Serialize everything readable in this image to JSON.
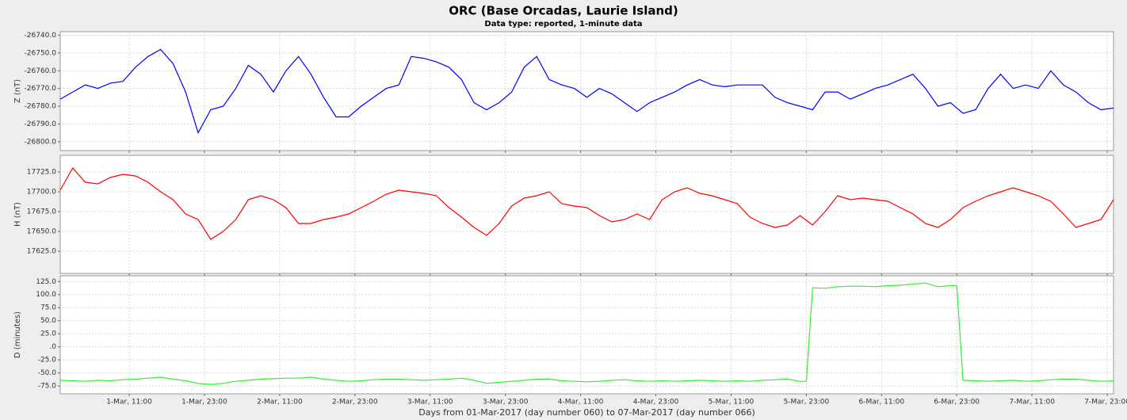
{
  "chart_data": [
    {
      "type": "line",
      "title": "ORC (Base Orcadas, Laurie Island)",
      "subtitle": "Data type: reported, 1-minute data",
      "ylabel": "Z (nT)",
      "x": [
        0,
        2,
        4,
        6,
        8,
        10,
        12,
        14,
        16,
        18,
        20,
        22,
        24,
        26,
        28,
        30,
        32,
        34,
        36,
        38,
        40,
        42,
        44,
        46,
        48,
        50,
        52,
        54,
        56,
        58,
        60,
        62,
        64,
        66,
        68,
        70,
        72,
        74,
        76,
        78,
        80,
        82,
        84,
        86,
        88,
        90,
        92,
        94,
        96,
        98,
        100,
        102,
        104,
        106,
        108,
        110,
        112,
        114,
        116,
        118,
        120,
        122,
        124,
        126,
        128,
        130,
        132,
        134,
        136,
        138,
        140,
        142,
        144,
        146,
        148,
        150,
        152,
        154,
        156,
        158,
        160,
        162,
        164,
        166,
        168
      ],
      "series": [
        {
          "color": "#0000ff",
          "values": [
            -26776,
            -26772,
            -26768,
            -26770,
            -26767,
            -26766,
            -26758,
            -26752,
            -26748,
            -26756,
            -26772,
            -26795,
            -26782,
            -26780,
            -26770,
            -26757,
            -26762,
            -26772,
            -26760,
            -26752,
            -26762,
            -26775,
            -26786,
            -26786,
            -26780,
            -26775,
            -26770,
            -26768,
            -26752,
            -26753,
            -26755,
            -26758,
            -26765,
            -26778,
            -26782,
            -26778,
            -26772,
            -26758,
            -26752,
            -26765,
            -26768,
            -26770,
            -26775,
            -26770,
            -26773,
            -26778,
            -26783,
            -26778,
            -26775,
            -26772,
            -26768,
            -26765,
            -26768,
            -26769,
            -26768,
            -26768,
            -26768,
            -26775,
            -26778,
            -26780,
            -26782,
            -26772,
            -26772,
            -26776,
            -26773,
            -26770,
            -26768,
            -26765,
            -26762,
            -26770,
            -26780,
            -26778,
            -26784,
            -26782,
            -26770,
            -26762,
            -26770,
            -26768,
            -26770,
            -26760,
            -26768,
            -26772,
            -26778,
            -26782,
            -26781
          ]
        }
      ],
      "xlim": [
        0,
        168
      ],
      "xticks": [
        11,
        23,
        35,
        47,
        59,
        71,
        83,
        95,
        107,
        119,
        131,
        143,
        155,
        167
      ],
      "ylim": [
        -26805,
        -26738
      ],
      "yticks": [
        {
          "value": -26740,
          "label": "-26740.0"
        },
        {
          "value": -26750,
          "label": "-26750.0"
        },
        {
          "value": -26760,
          "label": "-26760.0"
        },
        {
          "value": -26770,
          "label": "-26770.0"
        },
        {
          "value": -26780,
          "label": "-26780.0"
        },
        {
          "value": -26790,
          "label": "-26790.0"
        },
        {
          "value": -26800,
          "label": "-26800.0"
        }
      ],
      "grid": true
    },
    {
      "type": "line",
      "ylabel": "H (nT)",
      "x": [
        0,
        2,
        4,
        6,
        8,
        10,
        12,
        14,
        16,
        18,
        20,
        22,
        24,
        26,
        28,
        30,
        32,
        34,
        36,
        38,
        40,
        42,
        44,
        46,
        48,
        50,
        52,
        54,
        56,
        58,
        60,
        62,
        64,
        66,
        68,
        70,
        72,
        74,
        76,
        78,
        80,
        82,
        84,
        86,
        88,
        90,
        92,
        94,
        96,
        98,
        100,
        102,
        104,
        106,
        108,
        110,
        112,
        114,
        116,
        118,
        120,
        122,
        124,
        126,
        128,
        130,
        132,
        134,
        136,
        138,
        140,
        142,
        144,
        146,
        148,
        150,
        152,
        154,
        156,
        158,
        160,
        162,
        164,
        166,
        168
      ],
      "series": [
        {
          "color": "#ff0000",
          "values": [
            17702,
            17730,
            17712,
            17710,
            17718,
            17722,
            17720,
            17712,
            17700,
            17690,
            17672,
            17665,
            17640,
            17650,
            17665,
            17690,
            17695,
            17690,
            17680,
            17660,
            17660,
            17665,
            17668,
            17672,
            17680,
            17688,
            17697,
            17702,
            17700,
            17698,
            17695,
            17680,
            17668,
            17655,
            17645,
            17660,
            17682,
            17692,
            17695,
            17700,
            17685,
            17682,
            17680,
            17670,
            17662,
            17665,
            17672,
            17665,
            17690,
            17700,
            17705,
            17698,
            17695,
            17690,
            17685,
            17668,
            17660,
            17655,
            17658,
            17670,
            17658,
            17675,
            17695,
            17690,
            17692,
            17690,
            17688,
            17680,
            17672,
            17660,
            17655,
            17665,
            17680,
            17688,
            17695,
            17700,
            17705,
            17700,
            17695,
            17688,
            17672,
            17655,
            17660,
            17665,
            17690
          ]
        }
      ],
      "xlim": [
        0,
        168
      ],
      "xticks": [
        11,
        23,
        35,
        47,
        59,
        71,
        83,
        95,
        107,
        119,
        131,
        143,
        155,
        167
      ],
      "ylim": [
        17597,
        17746
      ],
      "yticks": [
        {
          "value": 17725,
          "label": "17725.0"
        },
        {
          "value": 17700,
          "label": "17700.0"
        },
        {
          "value": 17675,
          "label": "17675.0"
        },
        {
          "value": 17650,
          "label": "17650.0"
        },
        {
          "value": 17625,
          "label": "17625.0"
        }
      ],
      "grid": true
    },
    {
      "type": "line",
      "ylabel": "D (minutes)",
      "xlabel": "Days from 01-Mar-2017 (day number 060) to 07-Mar-2017 (day number 066)",
      "x": [
        0,
        2,
        4,
        6,
        8,
        10,
        12,
        14,
        16,
        18,
        20,
        22,
        24,
        26,
        28,
        30,
        32,
        34,
        36,
        38,
        40,
        42,
        44,
        46,
        48,
        50,
        52,
        54,
        56,
        58,
        60,
        62,
        64,
        66,
        68,
        70,
        72,
        74,
        76,
        78,
        80,
        82,
        84,
        86,
        88,
        90,
        92,
        94,
        96,
        98,
        100,
        102,
        104,
        106,
        108,
        110,
        112,
        114,
        116,
        118,
        119,
        120,
        122,
        124,
        126,
        128,
        130,
        132,
        134,
        136,
        138,
        140,
        142,
        143,
        144,
        146,
        148,
        150,
        152,
        154,
        156,
        158,
        160,
        162,
        164,
        166,
        168
      ],
      "series": [
        {
          "color": "#33ee33",
          "values": [
            -64,
            -65,
            -66,
            -64,
            -65,
            -63,
            -62,
            -60,
            -58,
            -62,
            -65,
            -70,
            -72,
            -70,
            -66,
            -64,
            -62,
            -61,
            -60,
            -60,
            -58,
            -62,
            -64,
            -66,
            -65,
            -63,
            -62,
            -62,
            -63,
            -64,
            -63,
            -62,
            -60,
            -64,
            -70,
            -68,
            -66,
            -64,
            -62,
            -62,
            -65,
            -66,
            -67,
            -66,
            -64,
            -63,
            -65,
            -66,
            -65,
            -66,
            -65,
            -64,
            -65,
            -66,
            -65,
            -66,
            -64,
            -63,
            -62,
            -66,
            -66,
            113,
            112,
            115,
            116,
            116,
            115,
            117,
            118,
            120,
            122,
            115,
            117,
            117,
            -64,
            -65,
            -66,
            -65,
            -64,
            -66,
            -65,
            -63,
            -62,
            -62,
            -64,
            -66,
            -65
          ]
        }
      ],
      "xlim": [
        0,
        168
      ],
      "xticks": [
        {
          "value": 11,
          "label": "1-Mar, 11:00"
        },
        {
          "value": 23,
          "label": "1-Mar, 23:00"
        },
        {
          "value": 35,
          "label": "2-Mar, 11:00"
        },
        {
          "value": 47,
          "label": "2-Mar, 23:00"
        },
        {
          "value": 59,
          "label": "3-Mar, 11:00"
        },
        {
          "value": 71,
          "label": "3-Mar, 23:00"
        },
        {
          "value": 83,
          "label": "4-Mar, 11:00"
        },
        {
          "value": 95,
          "label": "4-Mar, 23:00"
        },
        {
          "value": 107,
          "label": "5-Mar, 11:00"
        },
        {
          "value": 119,
          "label": "5-Mar, 23:00"
        },
        {
          "value": 131,
          "label": "6-Mar, 11:00"
        },
        {
          "value": 143,
          "label": "6-Mar, 23:00"
        },
        {
          "value": 155,
          "label": "7-Mar, 11:00"
        },
        {
          "value": 167,
          "label": "7-Mar, 23:00"
        }
      ],
      "ylim": [
        -90,
        136
      ],
      "yticks": [
        {
          "value": 125,
          "label": "125.0"
        },
        {
          "value": 100,
          "label": "100.0"
        },
        {
          "value": 75,
          "label": "75.0"
        },
        {
          "value": 50,
          "label": "50.0"
        },
        {
          "value": 25,
          "label": "25.0"
        },
        {
          "value": 0,
          "label": ".0"
        },
        {
          "value": -25,
          "label": "-25.0"
        },
        {
          "value": -50,
          "label": "-50.0"
        },
        {
          "value": -75,
          "label": "-75.0"
        }
      ],
      "grid": true
    }
  ]
}
